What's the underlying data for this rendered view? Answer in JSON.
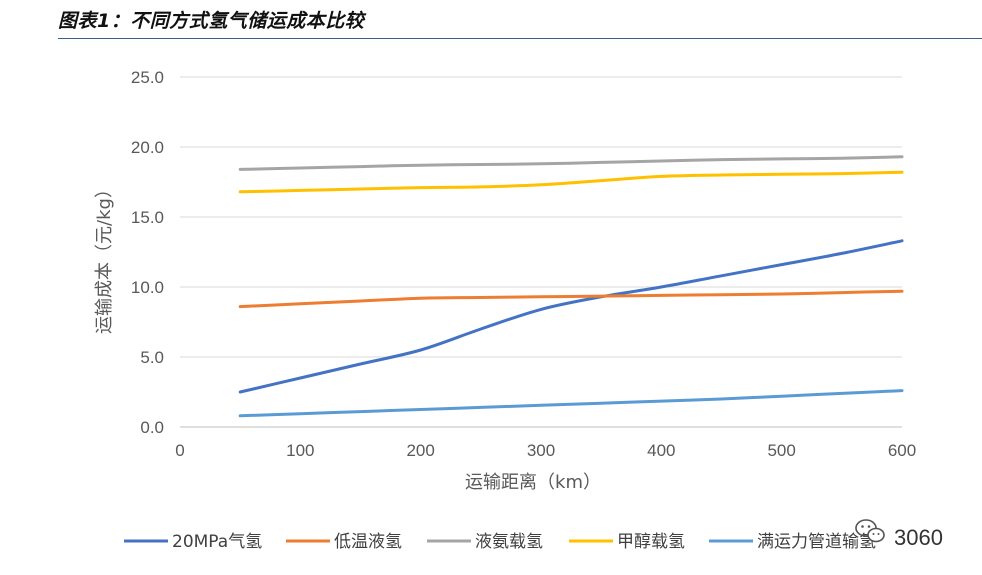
{
  "figure": {
    "title": "图表1：不同方式氢气储运成本比较"
  },
  "watermark": {
    "text": "3060",
    "icon": "wechat-icon"
  },
  "chart_data": {
    "type": "line",
    "title": "",
    "xlabel": "运输距离（km）",
    "ylabel": "运输成本（元/kg）",
    "xlim": [
      0,
      600
    ],
    "ylim": [
      0,
      25
    ],
    "x_ticks": [
      "0",
      "100",
      "200",
      "300",
      "400",
      "500",
      "600"
    ],
    "y_ticks": [
      "0.0",
      "5.0",
      "10.0",
      "15.0",
      "20.0",
      "25.0"
    ],
    "grid": "horizontal",
    "legend_position": "bottom",
    "x": [
      50,
      100,
      150,
      200,
      250,
      300,
      350,
      400,
      450,
      500,
      550,
      600
    ],
    "series": [
      {
        "name": "20MPa气氢",
        "color": "#4472C4",
        "values": [
          2.5,
          3.5,
          4.5,
          5.5,
          7.0,
          8.4,
          9.3,
          10.0,
          10.8,
          11.6,
          12.4,
          13.3
        ]
      },
      {
        "name": "低温液氢",
        "color": "#ED7D31",
        "values": [
          8.6,
          8.8,
          9.0,
          9.2,
          9.25,
          9.3,
          9.35,
          9.4,
          9.45,
          9.5,
          9.6,
          9.7
        ]
      },
      {
        "name": "液氨载氢",
        "color": "#A5A5A5",
        "values": [
          18.4,
          18.5,
          18.6,
          18.7,
          18.75,
          18.8,
          18.9,
          19.0,
          19.1,
          19.15,
          19.2,
          19.3
        ]
      },
      {
        "name": "甲醇载氢",
        "color": "#FFC000",
        "values": [
          16.8,
          16.9,
          17.0,
          17.1,
          17.15,
          17.3,
          17.6,
          17.9,
          18.0,
          18.05,
          18.1,
          18.2
        ]
      },
      {
        "name": "满运力管道输氢",
        "color": "#5B9BD5",
        "values": [
          0.8,
          0.95,
          1.1,
          1.25,
          1.4,
          1.55,
          1.7,
          1.85,
          2.0,
          2.2,
          2.4,
          2.6
        ]
      }
    ]
  }
}
